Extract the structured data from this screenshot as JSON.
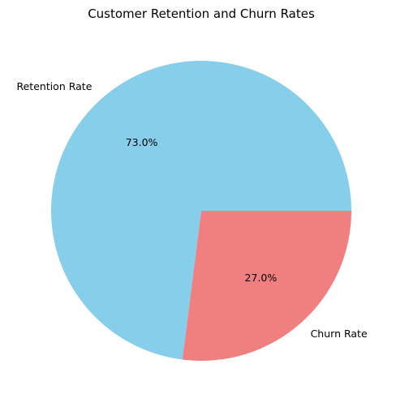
{
  "chart_data": {
    "type": "pie",
    "title": "Customer Retention and Churn Rates",
    "labels": [
      "Retention Rate",
      "Churn Rate"
    ],
    "values": [
      73.0,
      27.0
    ],
    "percent_labels": [
      "73.0%",
      "27.0%"
    ],
    "colors": [
      "#87ceeb",
      "#f08080"
    ],
    "start_angle_deg": 0,
    "direction": "counterclockwise",
    "legend": "none"
  }
}
